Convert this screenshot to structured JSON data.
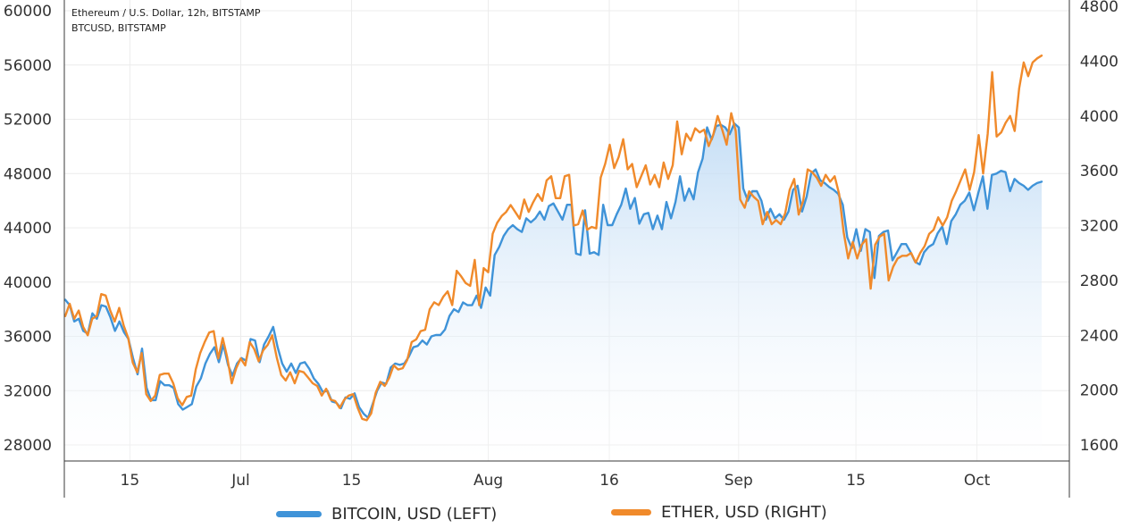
{
  "chart_data": {
    "type": "line",
    "header": {
      "line1": "Ethereum / U.S. Dollar, 12h, BITSTAMP",
      "line2": "BTCUSD, BITSTAMP"
    },
    "x_ticks": [
      {
        "label": "15",
        "t": 0.07
      },
      {
        "label": "Jul",
        "t": 0.19
      },
      {
        "label": "15",
        "t": 0.31
      },
      {
        "label": "Aug",
        "t": 0.458
      },
      {
        "label": "16",
        "t": 0.589
      },
      {
        "label": "Sep",
        "t": 0.729
      },
      {
        "label": "15",
        "t": 0.856
      },
      {
        "label": "Oct",
        "t": 0.987
      }
    ],
    "y_left": {
      "min": 26000,
      "max": 60000,
      "ticks": [
        28000,
        32000,
        36000,
        40000,
        44000,
        48000,
        52000,
        56000,
        60000
      ]
    },
    "y_right": {
      "min": 1600,
      "max": 4800,
      "ticks": [
        1600,
        2000,
        2400,
        2800,
        3200,
        3600,
        4000,
        4400,
        4800
      ]
    },
    "series": [
      {
        "name": "BITCOIN, USD (LEFT)",
        "axis": "left",
        "color": "#3f93d8",
        "fill": true,
        "values": [
          38700,
          38300,
          37100,
          37300,
          36400,
          36200,
          37700,
          37300,
          38300,
          38200,
          37400,
          36400,
          37100,
          36300,
          35800,
          34400,
          33200,
          35100,
          32200,
          31300,
          31300,
          32700,
          32400,
          32400,
          32200,
          31000,
          30600,
          30800,
          31000,
          32300,
          32900,
          34000,
          34700,
          35200,
          34100,
          35400,
          33900,
          33100,
          34000,
          34400,
          34200,
          35800,
          35700,
          34100,
          35400,
          36000,
          36700,
          35200,
          34000,
          33400,
          34000,
          33300,
          34000,
          34100,
          33600,
          32900,
          32500,
          31900,
          32000,
          31200,
          31100,
          30700,
          31500,
          31400,
          31800,
          30800,
          30300,
          30000,
          31000,
          32000,
          32600,
          32500,
          33700,
          34000,
          33900,
          34000,
          34500,
          35200,
          35300,
          35700,
          35400,
          36000,
          36100,
          36100,
          36500,
          37500,
          38000,
          37800,
          38500,
          38300,
          38300,
          39000,
          38100,
          39600,
          39000,
          42000,
          42600,
          43400,
          43900,
          44200,
          43900,
          43700,
          44700,
          44400,
          44700,
          45200,
          44600,
          45600,
          45800,
          45200,
          44600,
          45700,
          45700,
          42100,
          42000,
          45300,
          42100,
          42200,
          42000,
          45700,
          44200,
          44200,
          45000,
          45700,
          46900,
          45400,
          46200,
          44300,
          45000,
          45100,
          43900,
          44900,
          43900,
          45900,
          44700,
          45900,
          47800,
          46000,
          46900,
          46100,
          48100,
          49100,
          51400,
          50500,
          51500,
          51600,
          51400,
          50900,
          51700,
          51400,
          46900,
          46000,
          46700,
          46700,
          46000,
          44600,
          45400,
          44700,
          45000,
          44600,
          45200,
          46800,
          47100,
          45200,
          46300,
          48000,
          48300,
          47500,
          47300,
          47000,
          46800,
          46500,
          45700,
          43300,
          42500,
          43900,
          42300,
          43900,
          43700,
          40300,
          43400,
          43700,
          43800,
          41600,
          42200,
          42800,
          42800,
          42200,
          41500,
          41300,
          42200,
          42600,
          42800,
          43600,
          44100,
          42800,
          44500,
          45000,
          45700,
          46000,
          46600,
          45300,
          46600,
          47800,
          45400,
          47900,
          48000,
          48200,
          48100,
          46700,
          47600,
          47300,
          47100,
          46800,
          47100,
          47300,
          47400
        ]
      },
      {
        "name": "ETHER, USD (RIGHT)",
        "axis": "right",
        "color": "#f08a2b",
        "fill": false,
        "values": [
          2540,
          2630,
          2520,
          2580,
          2460,
          2400,
          2520,
          2540,
          2700,
          2690,
          2580,
          2500,
          2600,
          2470,
          2380,
          2200,
          2130,
          2270,
          1970,
          1920,
          1960,
          2110,
          2120,
          2120,
          2050,
          1940,
          1890,
          1950,
          1960,
          2150,
          2270,
          2350,
          2420,
          2430,
          2230,
          2380,
          2240,
          2050,
          2160,
          2230,
          2180,
          2350,
          2300,
          2210,
          2290,
          2330,
          2400,
          2240,
          2110,
          2070,
          2130,
          2050,
          2140,
          2130,
          2090,
          2050,
          2030,
          1960,
          2010,
          1930,
          1920,
          1870,
          1930,
          1960,
          1970,
          1870,
          1790,
          1780,
          1830,
          1980,
          2060,
          2030,
          2090,
          2180,
          2150,
          2160,
          2220,
          2350,
          2370,
          2430,
          2440,
          2590,
          2640,
          2620,
          2680,
          2720,
          2620,
          2870,
          2830,
          2780,
          2760,
          2950,
          2620,
          2890,
          2860,
          3140,
          3220,
          3270,
          3300,
          3350,
          3300,
          3250,
          3390,
          3300,
          3370,
          3430,
          3380,
          3530,
          3560,
          3400,
          3400,
          3560,
          3570,
          3200,
          3210,
          3310,
          3170,
          3190,
          3180,
          3550,
          3650,
          3790,
          3620,
          3700,
          3830,
          3610,
          3650,
          3480,
          3560,
          3640,
          3500,
          3570,
          3480,
          3660,
          3540,
          3640,
          3960,
          3720,
          3870,
          3820,
          3910,
          3880,
          3900,
          3780,
          3860,
          4000,
          3900,
          3790,
          4020,
          3890,
          3390,
          3330,
          3450,
          3410,
          3380,
          3210,
          3300,
          3210,
          3240,
          3210,
          3290,
          3460,
          3540,
          3280,
          3380,
          3610,
          3590,
          3550,
          3490,
          3570,
          3520,
          3560,
          3430,
          3150,
          2960,
          3080,
          2960,
          3060,
          3100,
          2740,
          3060,
          3120,
          3140,
          2800,
          2900,
          2960,
          2980,
          2980,
          3000,
          2930,
          3000,
          3050,
          3140,
          3170,
          3260,
          3200,
          3260,
          3380,
          3450,
          3530,
          3610,
          3460,
          3590,
          3860,
          3580,
          3870,
          4320,
          3850,
          3880,
          3950,
          4000,
          3890,
          4200,
          4390,
          4290,
          4390,
          4420,
          4440
        ]
      }
    ],
    "legend": [
      {
        "label": "BITCOIN, USD (LEFT)",
        "color": "#3f93d8"
      },
      {
        "label": "ETHER, USD (RIGHT)",
        "color": "#f08a2b"
      }
    ]
  }
}
